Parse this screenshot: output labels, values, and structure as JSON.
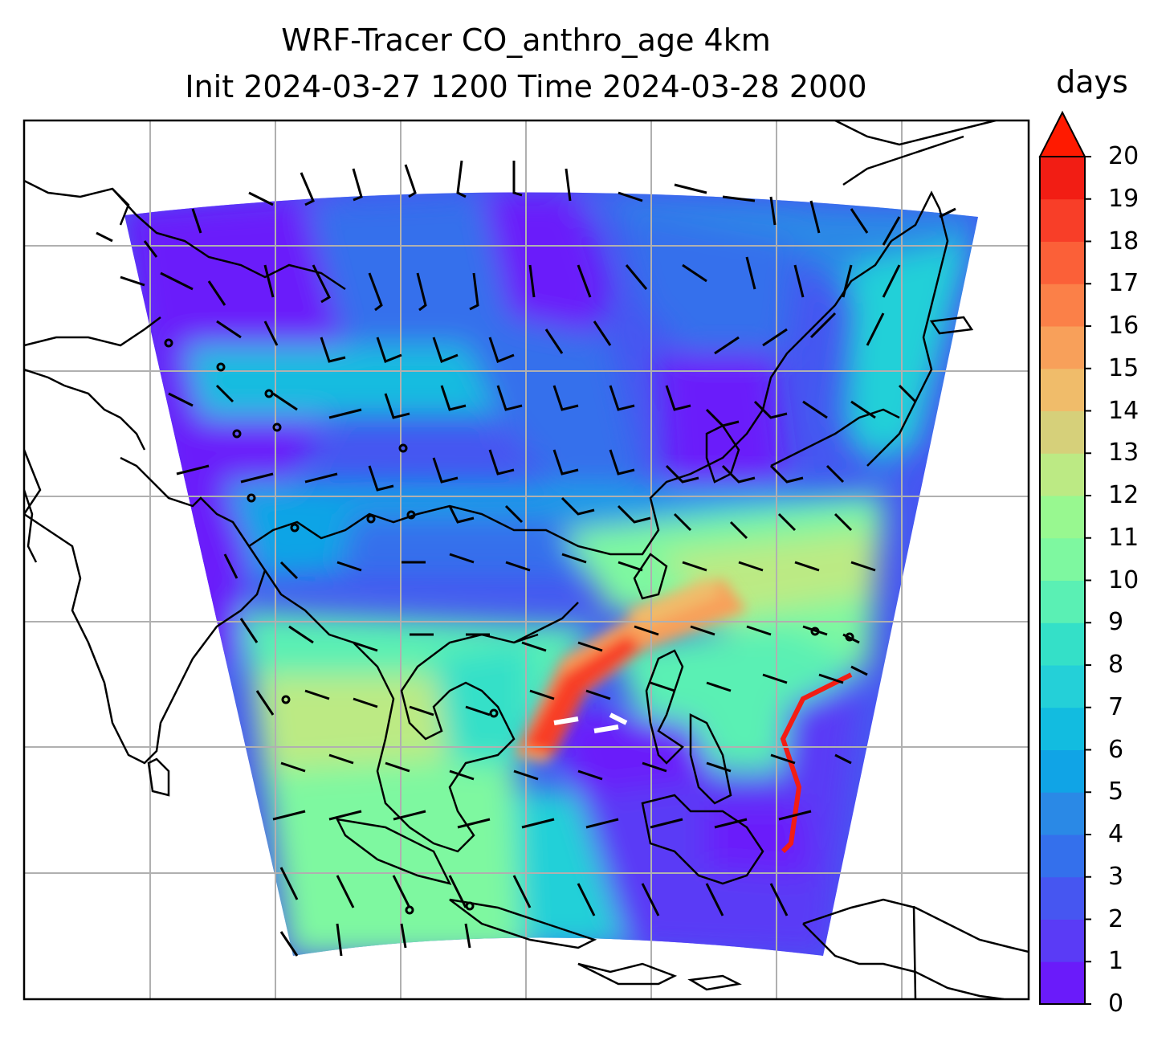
{
  "title": {
    "line1": "WRF-Tracer CO_anthro_age 4km",
    "line2": "Init 2024-03-27 1200 Time 2024-03-28 2000"
  },
  "colorbar": {
    "unit": "days",
    "ticks": [
      "0",
      "1",
      "2",
      "3",
      "4",
      "5",
      "6",
      "7",
      "8",
      "9",
      "10",
      "11",
      "12",
      "13",
      "14",
      "15",
      "16",
      "17",
      "18",
      "19",
      "20"
    ],
    "extend": "max",
    "colors": [
      "#6a1bfa",
      "#5a3bf6",
      "#4656f1",
      "#3470ec",
      "#2a89e6",
      "#10a4e6",
      "#12bce0",
      "#24d0d8",
      "#34e0c8",
      "#5af0b4",
      "#7ef8a0",
      "#98f890",
      "#bcea84",
      "#d6d07a",
      "#f0bc6a",
      "#f8a05a",
      "#fb8048",
      "#fb6038",
      "#f83e28",
      "#f21d14"
    ],
    "extend_color": "#ff1a00"
  },
  "map": {
    "field": "CO_anthro_age",
    "gridlines": true,
    "coastlines": true,
    "wind_barbs": true,
    "colors": {
      "background": "#ffffff",
      "gridline": "#b0b0b0",
      "coast": "#000000"
    }
  }
}
